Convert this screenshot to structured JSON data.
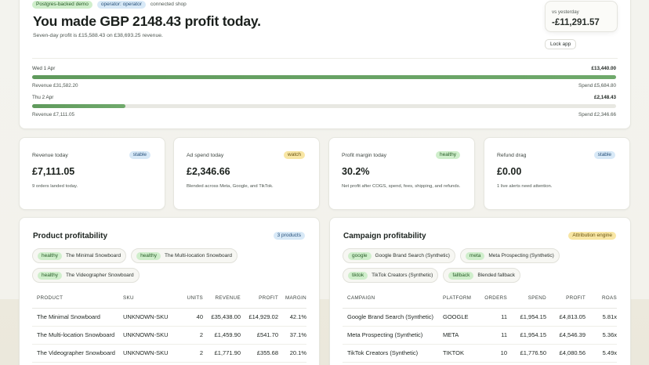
{
  "hero": {
    "tags": [
      {
        "label": "Postgres-backed demo",
        "tone": "green"
      },
      {
        "label": "operator: operator",
        "tone": "blue"
      },
      {
        "label": "connected shop",
        "tone": "plain"
      }
    ],
    "title": "You made GBP 2148.43 profit today.",
    "subtitle": "Seven-day profit is £15,588.43 on £38,693.25 revenue.",
    "comparison": {
      "label": "vs yesterday",
      "value": "-£11,291.57"
    },
    "lock_button": "Lock app",
    "days": [
      {
        "date": "Wed 1 Apr",
        "profit": "£13,440.00",
        "revenue": "Revenue £31,582.20",
        "spend": "Spend £5,684.80",
        "bar_fraction": 1.0
      },
      {
        "date": "Thu 2 Apr",
        "profit": "£2,148.43",
        "revenue": "Revenue £7,111.05",
        "spend": "Spend £2,346.66",
        "bar_fraction": 0.16
      }
    ]
  },
  "metrics": [
    {
      "label": "Revenue today",
      "badge": "stable",
      "badge_tone": "blue",
      "value": "£7,111.05",
      "note": "9 orders landed today."
    },
    {
      "label": "Ad spend today",
      "badge": "watch",
      "badge_tone": "yellow",
      "value": "£2,346.66",
      "note": "Blended across Meta, Google, and TikTok."
    },
    {
      "label": "Profit margin today",
      "badge": "healthy",
      "badge_tone": "green",
      "value": "30.2%",
      "note": "Net profit after COGS, spend, fees, shipping, and refunds."
    },
    {
      "label": "Refund drag",
      "badge": "stable",
      "badge_tone": "blue",
      "value": "£0.00",
      "note": "1 live alerts need attention."
    }
  ],
  "product_panel": {
    "title": "Product profitability",
    "badge": "3 products",
    "chips": [
      {
        "status": "healthy",
        "name": "The Minimal Snowboard"
      },
      {
        "status": "healthy",
        "name": "The Multi-location Snowboard"
      },
      {
        "status": "healthy",
        "name": "The Videographer Snowboard"
      }
    ],
    "columns": [
      "Product",
      "SKU",
      "Units",
      "Revenue",
      "Profit",
      "Margin"
    ],
    "rows": [
      [
        "The Minimal Snowboard",
        "UNKNOWN-SKU",
        "40",
        "£35,438.00",
        "£14,929.02",
        "42.1%"
      ],
      [
        "The Multi-location Snowboard",
        "UNKNOWN-SKU",
        "2",
        "£1,459.90",
        "£541.70",
        "37.1%"
      ],
      [
        "The Videographer Snowboard",
        "UNKNOWN-SKU",
        "2",
        "£1,771.90",
        "£355.68",
        "20.1%"
      ]
    ]
  },
  "campaign_panel": {
    "title": "Campaign profitability",
    "badge": "Attribution engine",
    "chips": [
      {
        "status": "google",
        "name": "Google Brand Search (Synthetic)"
      },
      {
        "status": "meta",
        "name": "Meta Prospecting (Synthetic)"
      },
      {
        "status": "tiktok",
        "name": "TikTok Creators (Synthetic)"
      },
      {
        "status": "fallback",
        "name": "Blended fallback"
      }
    ],
    "columns": [
      "Campaign",
      "Platform",
      "Orders",
      "Spend",
      "Profit",
      "ROAS"
    ],
    "rows": [
      [
        "Google Brand Search (Synthetic)",
        "GOOGLE",
        "11",
        "£1,954.15",
        "£4,813.05",
        "5.81x"
      ],
      [
        "Meta Prospecting (Synthetic)",
        "META",
        "11",
        "£1,954.15",
        "£4,546.39",
        "5.36x"
      ],
      [
        "TikTok Creators (Synthetic)",
        "TIKTOK",
        "10",
        "£1,776.50",
        "£4,080.56",
        "5.49x"
      ]
    ]
  }
}
